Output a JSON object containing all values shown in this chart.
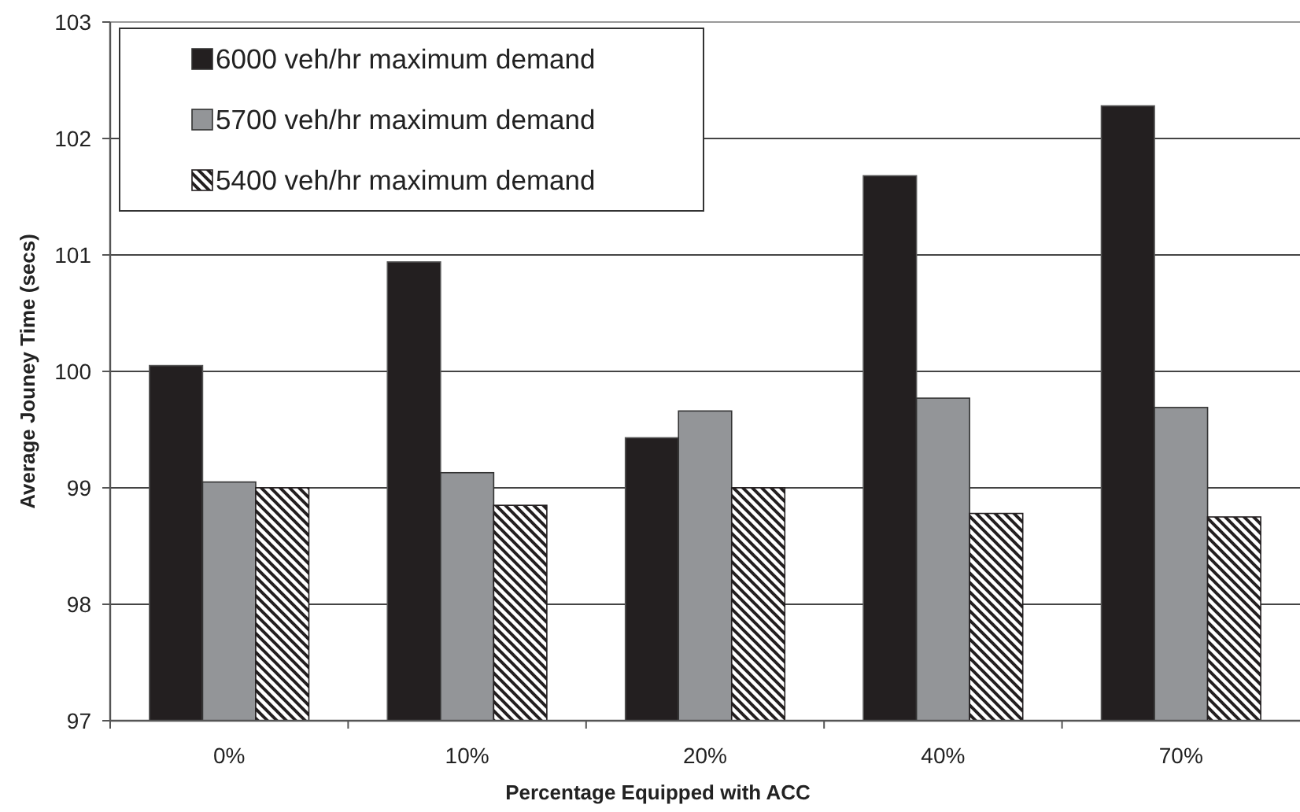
{
  "chart_data": {
    "type": "bar",
    "xlabel": "Percentage Equipped with ACC",
    "ylabel": "Average Jouney Time (secs)",
    "categories": [
      "0%",
      "10%",
      "20%",
      "40%",
      "70%"
    ],
    "series": [
      {
        "name": "6000 veh/hr maximum demand",
        "color": "#231f20",
        "values": [
          100.05,
          100.94,
          99.43,
          101.68,
          102.28
        ]
      },
      {
        "name": "5700 veh/hr maximum demand",
        "color": "#939598",
        "values": [
          99.05,
          99.13,
          99.66,
          99.77,
          99.69
        ]
      },
      {
        "name": "5400 veh/hr maximum demand",
        "color": "#231f20",
        "values": [
          99.0,
          98.85,
          99.0,
          98.78,
          98.75
        ]
      }
    ],
    "ylim": [
      97,
      103
    ],
    "yticks": [
      97,
      98,
      99,
      100,
      101,
      102,
      103
    ],
    "grid": "y",
    "legend": "top left"
  }
}
